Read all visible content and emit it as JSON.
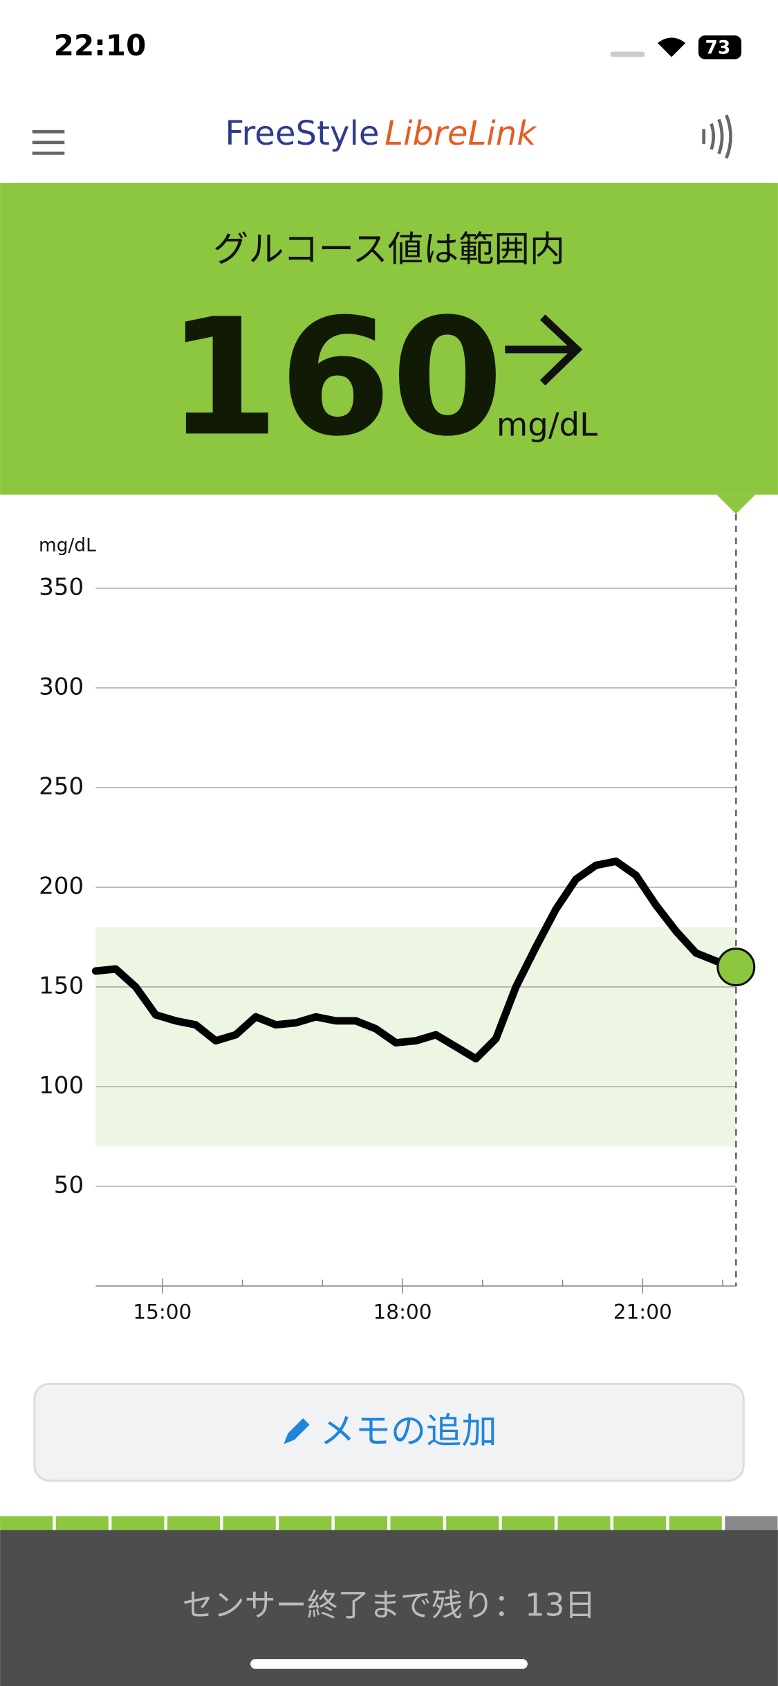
{
  "status_bar": {
    "time": "22:10",
    "battery": "73"
  },
  "app_bar": {
    "logo_part1": "FreeStyle",
    "logo_part2": "LibreLink"
  },
  "reading": {
    "status": "グルコース値は範囲内",
    "value": 160,
    "unit": "mg/dL"
  },
  "chart_data": {
    "type": "line",
    "y_label": "mg/dL",
    "color": "#000000",
    "current_color": "#8dc63f",
    "target_range": [
      70,
      180
    ],
    "target_color": "#edf6e3",
    "x": [
      850,
      865,
      880,
      895,
      910,
      925,
      940,
      955,
      970,
      985,
      1000,
      1015,
      1030,
      1045,
      1060,
      1075,
      1090,
      1105,
      1120,
      1135,
      1150,
      1165,
      1180,
      1195,
      1210,
      1225,
      1240,
      1255,
      1270,
      1285,
      1300,
      1315,
      1330
    ],
    "values": [
      158,
      159,
      150,
      136,
      133,
      131,
      123,
      126,
      135,
      131,
      132,
      135,
      133,
      133,
      129,
      122,
      123,
      126,
      120,
      114,
      124,
      150,
      170,
      189,
      204,
      211,
      213,
      206,
      191,
      178,
      167,
      163,
      160
    ],
    "xlim": [
      850,
      1330
    ],
    "ylim": [
      0,
      350
    ],
    "xticks": [
      {
        "value": 900,
        "label": "15:00"
      },
      {
        "value": 1080,
        "label": "18:00"
      },
      {
        "value": 1260,
        "label": "21:00"
      }
    ],
    "xminorticks": [
      960,
      1020,
      1140,
      1200,
      1320
    ],
    "yticks": [
      50,
      100,
      150,
      200,
      250,
      300,
      350
    ],
    "grid": true
  },
  "memo_button": "メモの追加",
  "footer": "センサー終了まで残り：13日"
}
